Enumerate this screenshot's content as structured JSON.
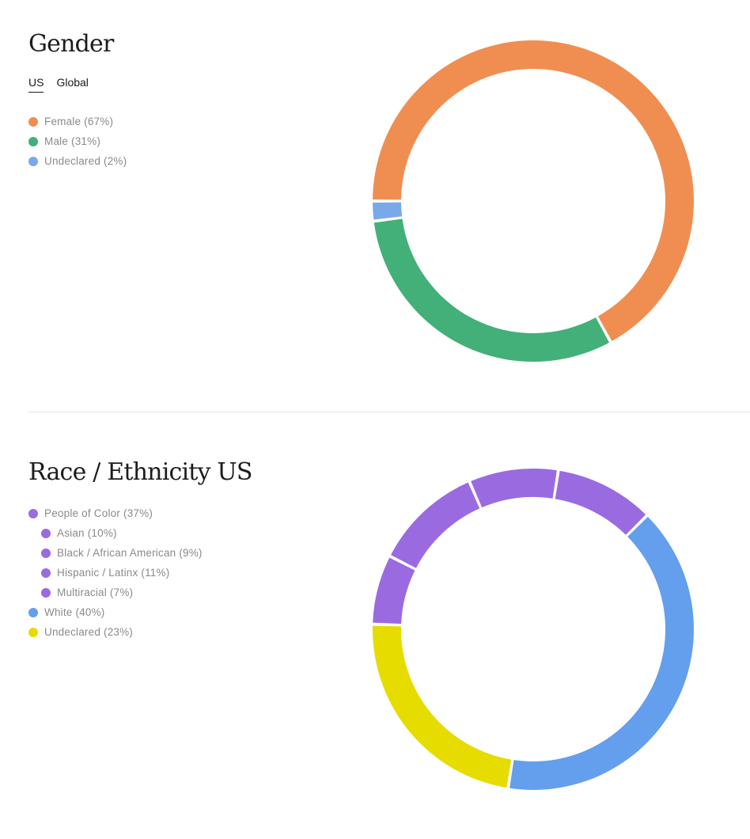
{
  "gender": {
    "title": "Gender",
    "tabs": [
      {
        "label": "US",
        "active": true
      },
      {
        "label": "Global",
        "active": false
      }
    ],
    "legend": [
      {
        "label": "Female (67%)",
        "color": "#f08e52"
      },
      {
        "label": "Male (31%)",
        "color": "#42b078"
      },
      {
        "label": "Undeclared (2%)",
        "color": "#7aa9ea"
      }
    ]
  },
  "race": {
    "title": "Race / Ethnicity US",
    "legend": [
      {
        "label": "People of Color (37%)",
        "color": "#9a6be0",
        "indent": false
      },
      {
        "label": "Asian (10%)",
        "color": "#9a6be0",
        "indent": true
      },
      {
        "label": "Black / African American (9%)",
        "color": "#9a6be0",
        "indent": true
      },
      {
        "label": "Hispanic / Latinx (11%)",
        "color": "#9a6be0",
        "indent": true
      },
      {
        "label": "Multiracial (7%)",
        "color": "#9a6be0",
        "indent": true
      },
      {
        "label": "White (40%)",
        "color": "#639fec",
        "indent": false
      },
      {
        "label": "Undeclared (23%)",
        "color": "#e6dc00",
        "indent": false
      }
    ]
  },
  "chart_data": [
    {
      "type": "pie",
      "variant": "donut",
      "title": "Gender",
      "categories": [
        "Female",
        "Male",
        "Undeclared"
      ],
      "values": [
        67,
        31,
        2
      ],
      "colors": [
        "#f08e52",
        "#42b078",
        "#7aa9ea"
      ],
      "legend": "left"
    },
    {
      "type": "pie",
      "variant": "donut",
      "title": "Race / Ethnicity US",
      "categories": [
        "White",
        "Undeclared",
        "Multiracial",
        "Hispanic / Latinx",
        "Black / African American",
        "Asian"
      ],
      "values": [
        40,
        23,
        7,
        11,
        9,
        10
      ],
      "colors": [
        "#639fec",
        "#e6dc00",
        "#9a6be0",
        "#9a6be0",
        "#9a6be0",
        "#9a6be0"
      ],
      "legend": "left"
    }
  ]
}
